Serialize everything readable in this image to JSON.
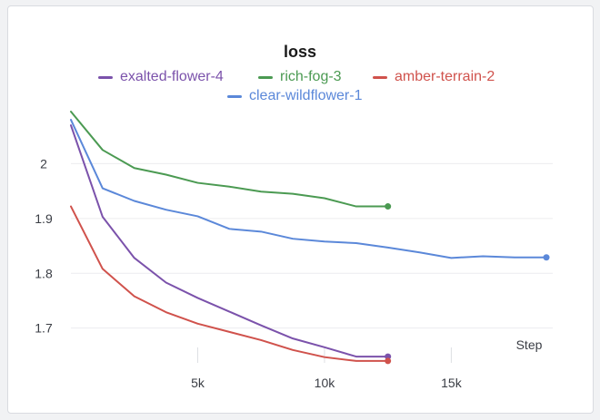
{
  "chart_data": {
    "type": "line",
    "title": "loss",
    "xlabel": "Step",
    "ylabel": "",
    "xlim": [
      0,
      19000
    ],
    "ylim": [
      1.62,
      2.1
    ],
    "x_ticks": [
      5000,
      10000,
      15000
    ],
    "x_tick_labels": [
      "5k",
      "10k",
      "15k"
    ],
    "y_ticks": [
      1.7,
      1.8,
      1.9,
      2.0
    ],
    "y_tick_labels": [
      "1.7",
      "1.8",
      "1.9",
      "2"
    ],
    "grid": true,
    "legend_position": "top",
    "series": [
      {
        "name": "exalted-flower-4",
        "color": "#7b52ab",
        "x": [
          0,
          1250,
          2500,
          3750,
          5000,
          6250,
          7500,
          8750,
          10000,
          11250,
          12500
        ],
        "values": [
          2.07,
          1.903,
          1.828,
          1.783,
          1.755,
          1.73,
          1.705,
          1.681,
          1.665,
          1.648,
          1.648
        ]
      },
      {
        "name": "rich-fog-3",
        "color": "#4b9a52",
        "x": [
          0,
          1250,
          2500,
          3750,
          5000,
          6250,
          7500,
          8750,
          10000,
          11250,
          12500
        ],
        "values": [
          2.095,
          2.025,
          1.992,
          1.98,
          1.965,
          1.958,
          1.949,
          1.945,
          1.937,
          1.922,
          1.922
        ]
      },
      {
        "name": "amber-terrain-2",
        "color": "#d0524c",
        "x": [
          0,
          1250,
          2500,
          3750,
          5000,
          6250,
          7500,
          8750,
          10000,
          11250,
          12500
        ],
        "values": [
          1.922,
          1.808,
          1.758,
          1.729,
          1.708,
          1.693,
          1.678,
          1.66,
          1.647,
          1.64,
          1.64
        ]
      },
      {
        "name": "clear-wildflower-1",
        "color": "#5b88d9",
        "x": [
          0,
          1250,
          2500,
          3750,
          5000,
          6250,
          7500,
          8750,
          10000,
          11250,
          12500,
          13750,
          15000,
          16250,
          17500,
          18750
        ],
        "values": [
          2.08,
          1.955,
          1.932,
          1.916,
          1.904,
          1.881,
          1.876,
          1.863,
          1.858,
          1.855,
          1.847,
          1.838,
          1.828,
          1.831,
          1.829,
          1.829
        ]
      }
    ]
  }
}
